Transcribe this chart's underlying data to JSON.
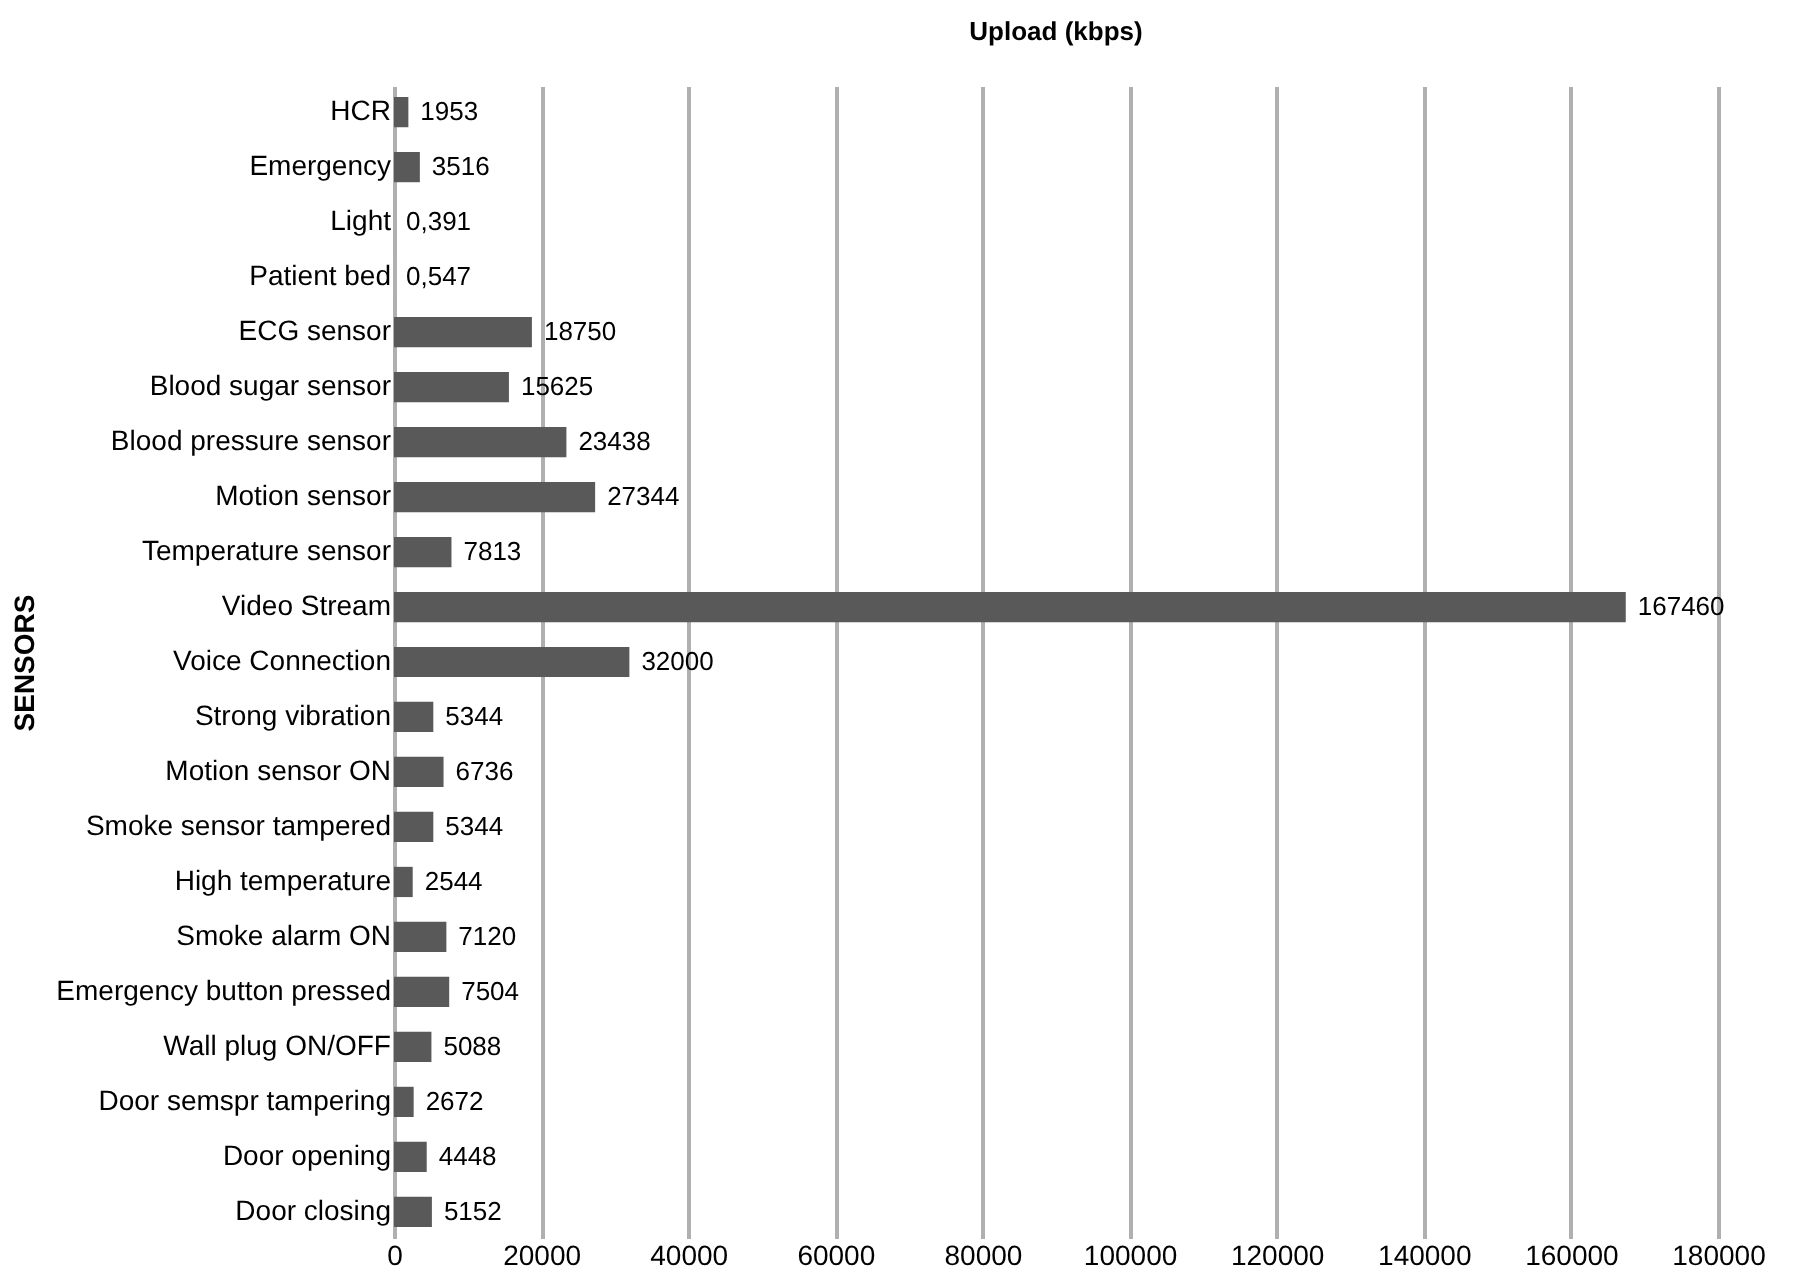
{
  "chart_data": {
    "type": "bar",
    "orientation": "horizontal",
    "title": "Upload (kbps)",
    "ylabel": "SENSORS",
    "categories": [
      "HCR",
      "Emergency",
      "Light",
      "Patient bed",
      "ECG sensor",
      "Blood sugar sensor",
      "Blood pressure sensor",
      "Motion sensor",
      "Temperature sensor",
      "Video Stream",
      "Voice Connection",
      "Strong vibration",
      "Motion sensor ON",
      "Smoke sensor tampered",
      "High temperature",
      "Smoke alarm ON",
      "Emergency button pressed",
      "Wall plug ON/OFF",
      "Door semspr tampering",
      "Door opening",
      "Door closing"
    ],
    "values": [
      1953,
      3516,
      0.391,
      0.547,
      18750,
      15625,
      23438,
      27344,
      7813,
      167460,
      32000,
      5344,
      6736,
      5344,
      2544,
      7120,
      7504,
      5088,
      2672,
      4448,
      5152
    ],
    "value_labels": [
      "1953",
      "3516",
      "0,391",
      "0,547",
      "18750",
      "15625",
      "23438",
      "27344",
      "7813",
      "167460",
      "32000",
      "5344",
      "6736",
      "5344",
      "2544",
      "7120",
      "7504",
      "5088",
      "2672",
      "4448",
      "5152"
    ],
    "color": "#595959",
    "xlim": [
      0,
      180000
    ],
    "xticks": [
      0,
      20000,
      40000,
      60000,
      80000,
      100000,
      120000,
      140000,
      160000,
      180000
    ],
    "grid": "x"
  }
}
